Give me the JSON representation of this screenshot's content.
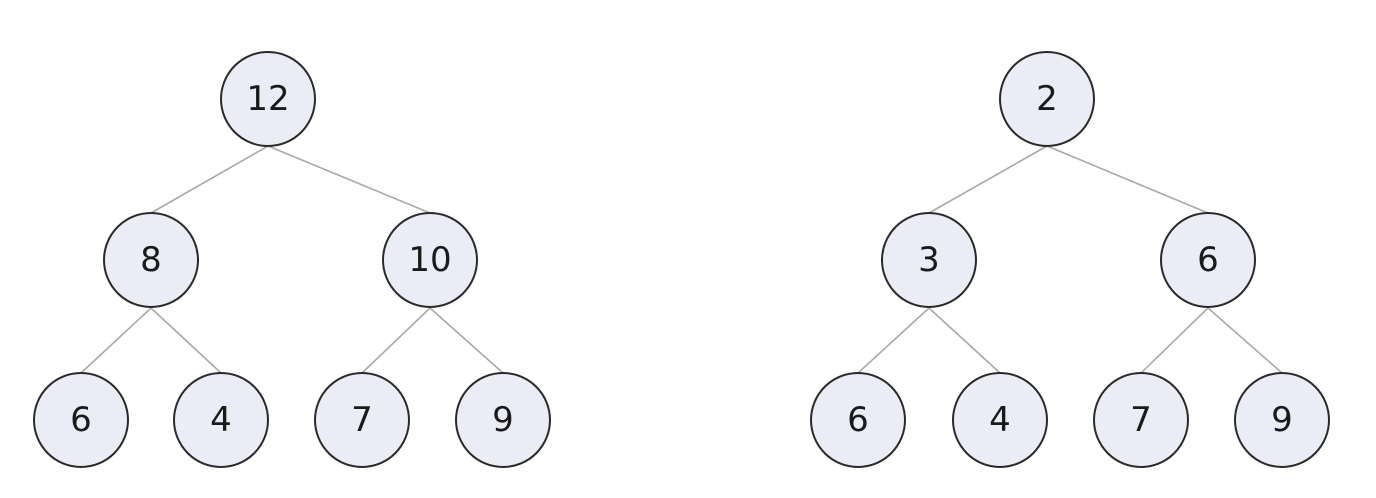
{
  "colors": {
    "background": "#ffffff",
    "node_fill": "#ebedf6",
    "node_stroke": "#2a2a2a",
    "edge": "#a9a9a9",
    "text": "#1a1a1a"
  },
  "trees": [
    {
      "id": "left-tree",
      "nodes": [
        {
          "id": "n0",
          "label": "12"
        },
        {
          "id": "n1",
          "label": "8"
        },
        {
          "id": "n2",
          "label": "10"
        },
        {
          "id": "n3",
          "label": "6"
        },
        {
          "id": "n4",
          "label": "4"
        },
        {
          "id": "n5",
          "label": "7"
        },
        {
          "id": "n6",
          "label": "9"
        }
      ],
      "edges": [
        [
          "n0",
          "n1"
        ],
        [
          "n0",
          "n2"
        ],
        [
          "n1",
          "n3"
        ],
        [
          "n1",
          "n4"
        ],
        [
          "n2",
          "n5"
        ],
        [
          "n2",
          "n6"
        ]
      ]
    },
    {
      "id": "right-tree",
      "nodes": [
        {
          "id": "n0",
          "label": "2"
        },
        {
          "id": "n1",
          "label": "3"
        },
        {
          "id": "n2",
          "label": "6"
        },
        {
          "id": "n3",
          "label": "6"
        },
        {
          "id": "n4",
          "label": "4"
        },
        {
          "id": "n5",
          "label": "7"
        },
        {
          "id": "n6",
          "label": "9"
        }
      ],
      "edges": [
        [
          "n0",
          "n1"
        ],
        [
          "n0",
          "n2"
        ],
        [
          "n1",
          "n3"
        ],
        [
          "n1",
          "n4"
        ],
        [
          "n2",
          "n5"
        ],
        [
          "n2",
          "n6"
        ]
      ]
    }
  ]
}
